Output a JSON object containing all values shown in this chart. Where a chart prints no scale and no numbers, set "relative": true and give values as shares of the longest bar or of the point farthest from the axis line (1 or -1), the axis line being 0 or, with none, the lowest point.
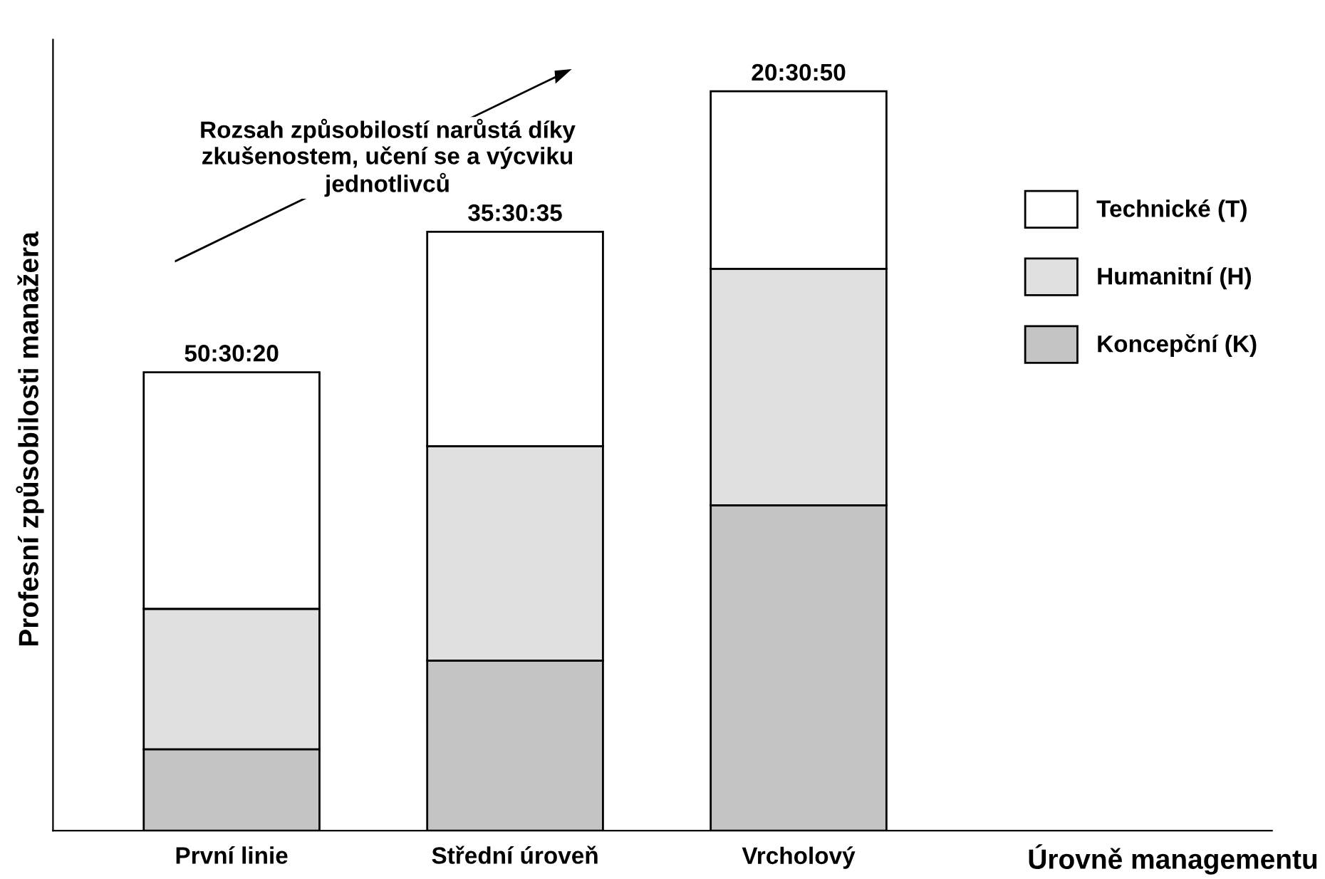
{
  "chart_data": {
    "type": "bar",
    "stacked": true,
    "relative": true,
    "xlabel": "Úrovně managementu",
    "ylabel": "Profesní způsobilosti manažera",
    "categories": [
      "První linie",
      "Střední úroveň",
      "Vrcholový"
    ],
    "series": [
      {
        "name": "Koncepční (K)",
        "color": "#c4c4c4",
        "values": [
          0.11,
          0.23,
          0.44
        ]
      },
      {
        "name": "Humanitní (H)",
        "color": "#e0e0e0",
        "values": [
          0.19,
          0.29,
          0.32
        ]
      },
      {
        "name": "Technické (T)",
        "color": "#ffffff",
        "values": [
          0.32,
          0.29,
          0.24
        ]
      }
    ],
    "annotations": [
      {
        "text": "50:30:20",
        "x": "První linie",
        "y": 0.62
      },
      {
        "text": "35:30:35",
        "x": "Střední úroveň",
        "y": 0.81
      },
      {
        "text": "20:30:50",
        "x": "Vrcholový",
        "y": 1.0
      },
      "Rozsah způsobilostí narůstá díky\nzkušenostem, učení se a výcviku\njednotlivců"
    ],
    "legend": "right",
    "grid": false
  }
}
